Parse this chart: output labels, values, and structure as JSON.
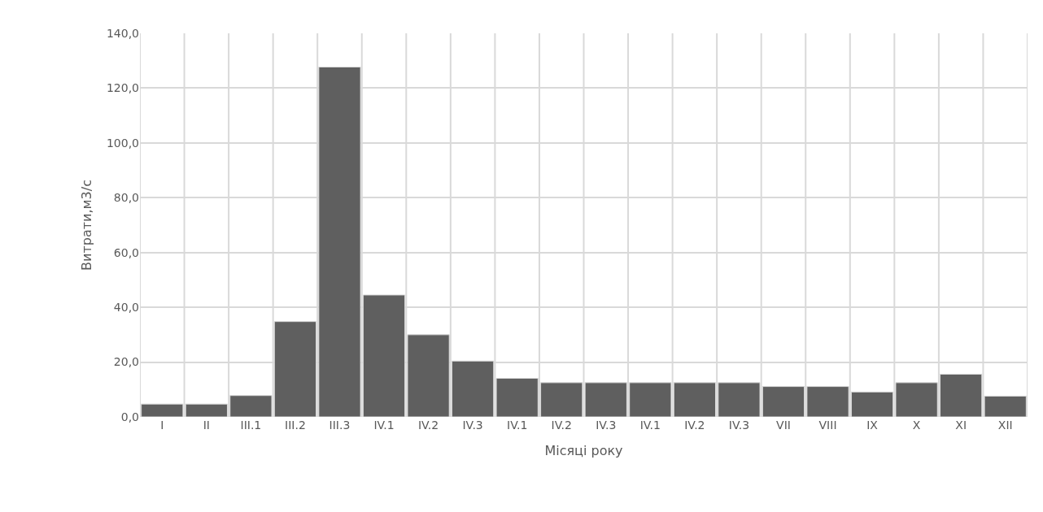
{
  "chart_data": {
    "type": "bar",
    "xlabel": "Місяці року",
    "ylabel": "Витрати,м3/с",
    "categories": [
      "I",
      "II",
      "III.1",
      "III.2",
      "III.3",
      "IV.1",
      "IV.2",
      "IV.3",
      "IV.1",
      "IV.2",
      "IV.3",
      "IV.1",
      "IV.2",
      "IV.3",
      "VII",
      "VIII",
      "IX",
      "X",
      "XI",
      "XII"
    ],
    "values": [
      4.7,
      4.7,
      7.8,
      34.8,
      127.7,
      44.5,
      30.0,
      20.4,
      14.1,
      12.5,
      12.5,
      12.5,
      12.5,
      12.5,
      11.1,
      11.1,
      9.1,
      12.5,
      15.6,
      7.6
    ],
    "color": "#5f5f5f",
    "ylim": [
      0,
      140
    ],
    "yticks": [
      {
        "value": 0,
        "label": "0,0"
      },
      {
        "value": 20,
        "label": "20,0"
      },
      {
        "value": 40,
        "label": "40,0"
      },
      {
        "value": 60,
        "label": "60,0"
      },
      {
        "value": 80,
        "label": "80,0"
      },
      {
        "value": 100,
        "label": "100,0"
      },
      {
        "value": 120,
        "label": "120,0"
      },
      {
        "value": 140,
        "label": "140,0"
      }
    ],
    "grid": true
  }
}
